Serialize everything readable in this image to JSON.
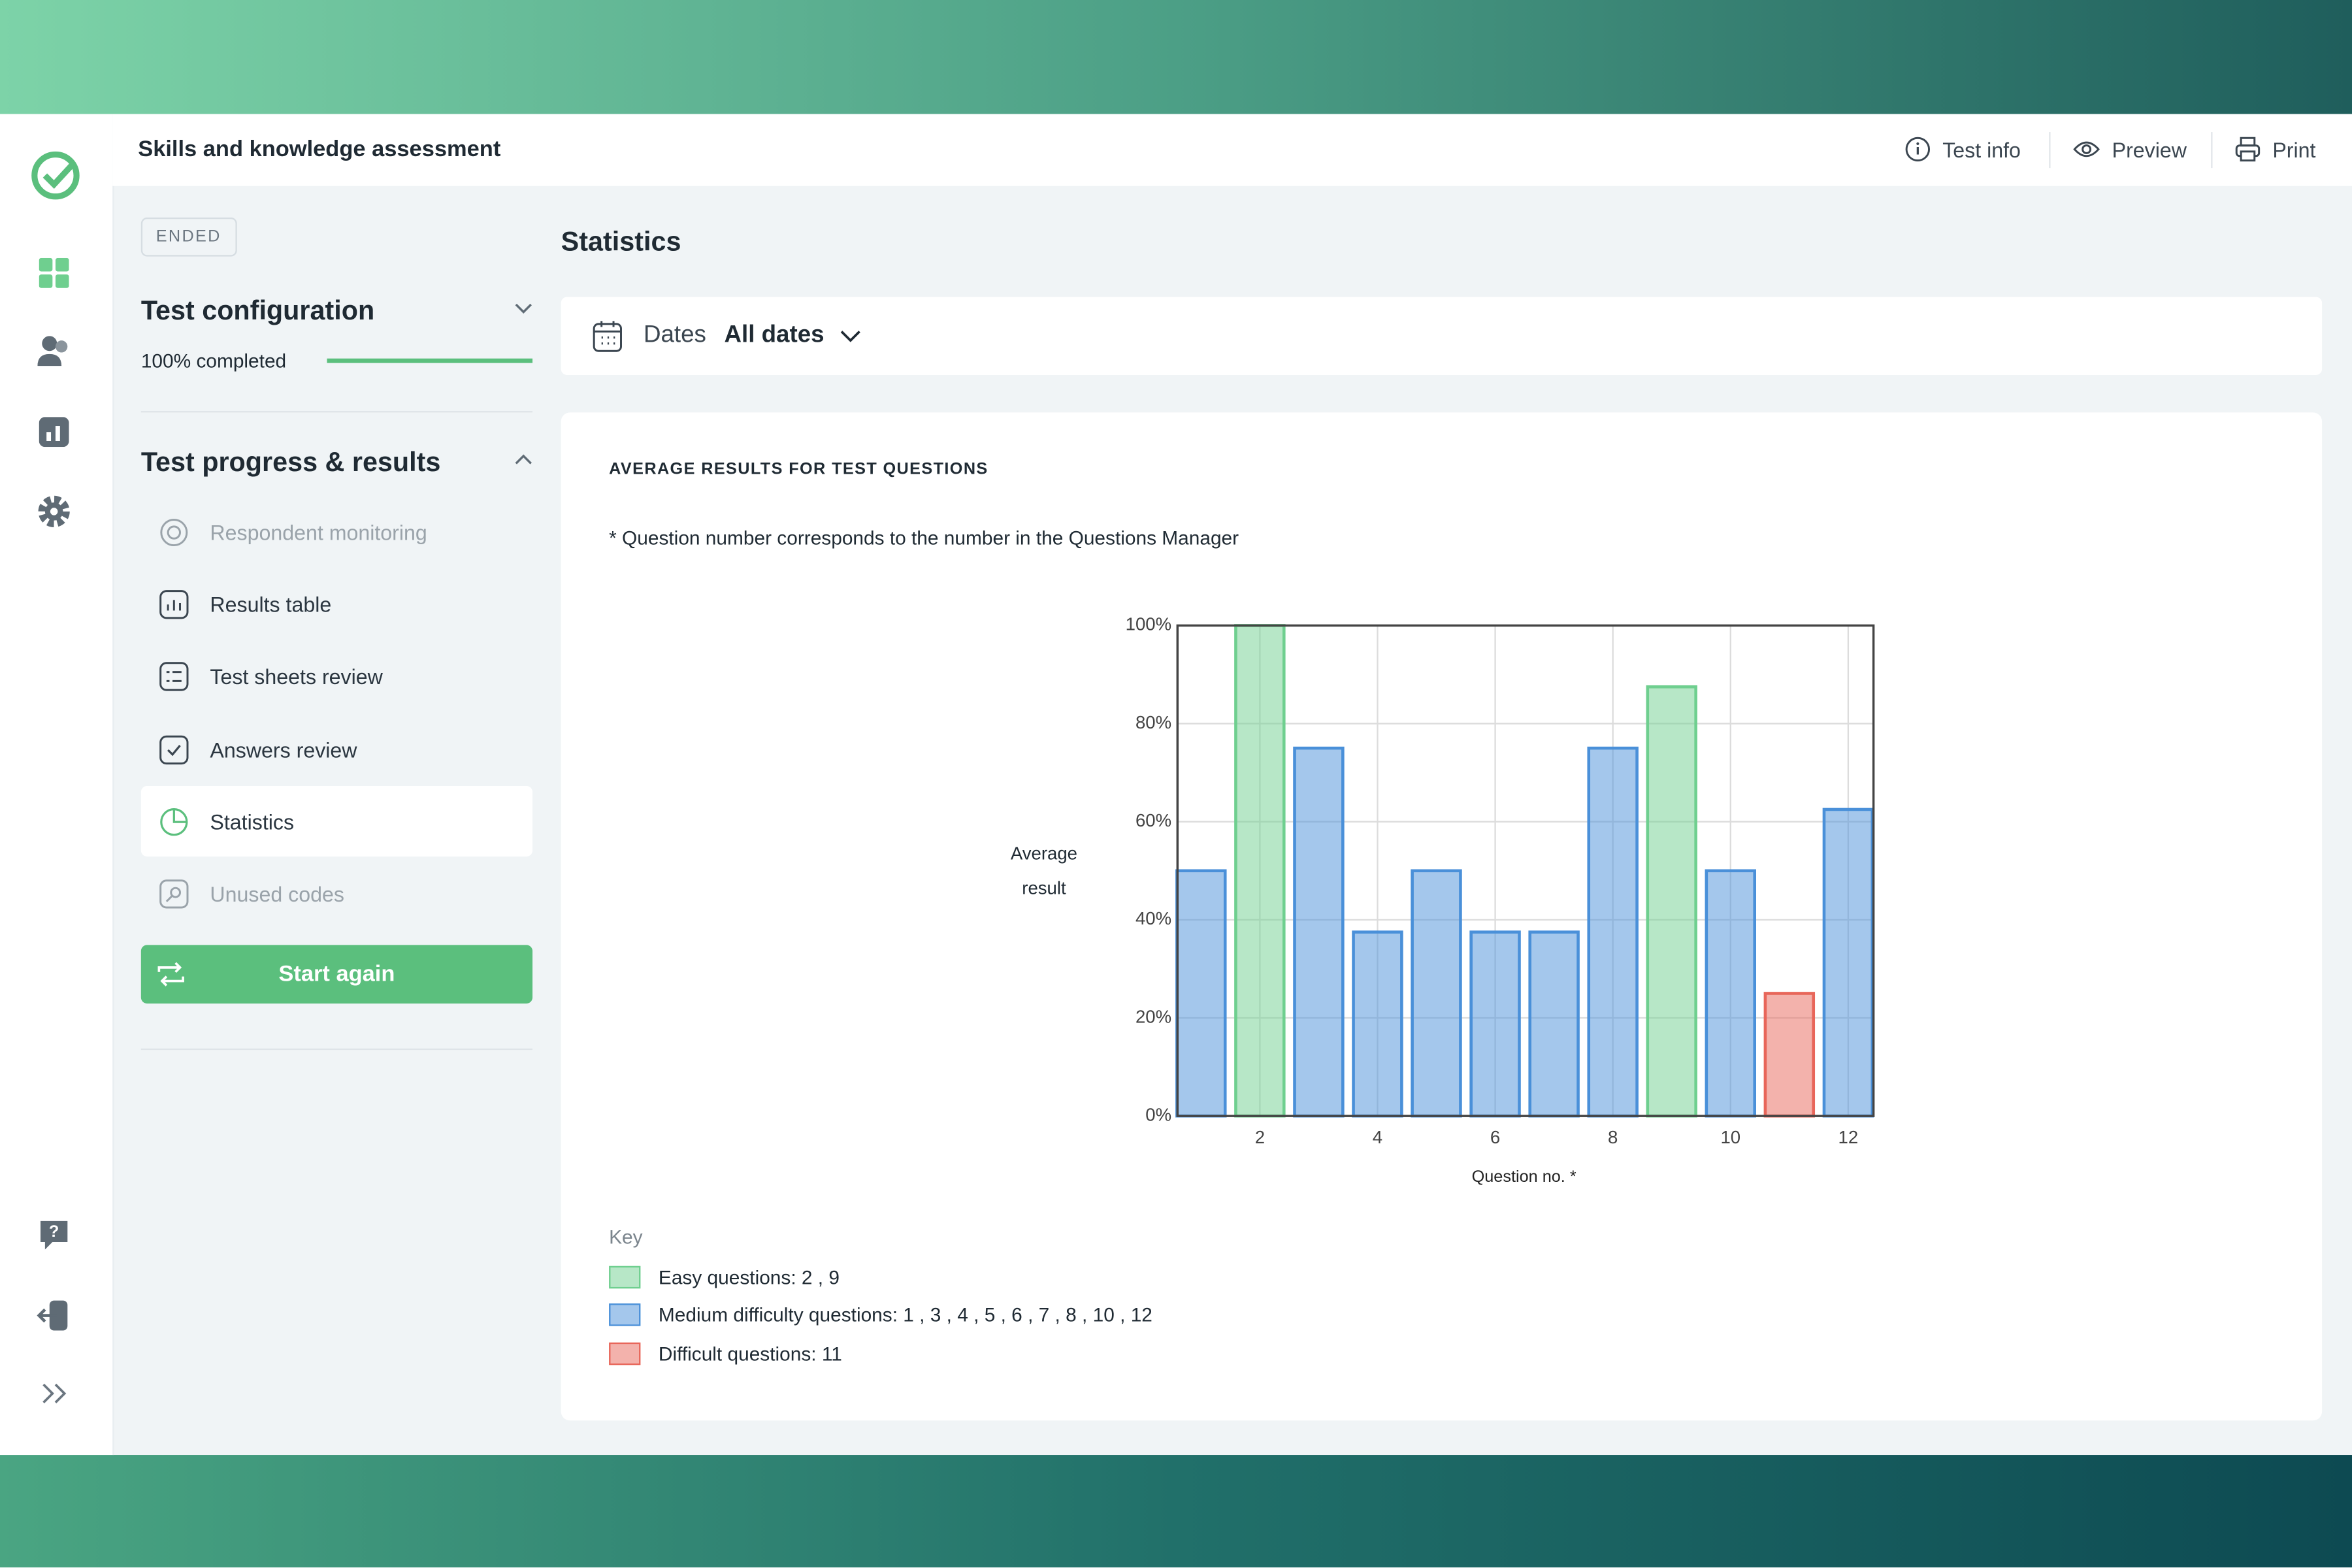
{
  "header": {
    "title": "Skills and knowledge assessment",
    "actions": [
      "Test info",
      "Preview",
      "Print"
    ]
  },
  "sidebar": {
    "status": "ENDED",
    "configuration": {
      "title": "Test configuration",
      "progress_label": "100% completed",
      "progress": 100
    },
    "progress_section": {
      "title": "Test progress & results",
      "items": [
        "Respondent monitoring",
        "Results table",
        "Test sheets review",
        "Answers review",
        "Statistics",
        "Unused codes"
      ],
      "button": "Start again"
    }
  },
  "main": {
    "title": "Statistics",
    "filter_label": "Dates",
    "filter_value": "All dates",
    "card_title": "AVERAGE RESULTS FOR TEST QUESTIONS",
    "note": "* Question number corresponds to the number in the Questions Manager"
  },
  "chart_data": {
    "type": "bar",
    "x_label": "Question no. *",
    "y_label": "Average result",
    "x": [
      1,
      2,
      3,
      4,
      5,
      6,
      7,
      8,
      9,
      10,
      11,
      12
    ],
    "values": [
      50,
      100,
      75,
      37.5,
      50,
      37.5,
      37.5,
      75,
      87.5,
      50,
      25,
      62.5
    ],
    "colors": [
      "#4a90d9",
      "#6fcf8f",
      "#4a90d9",
      "#4a90d9",
      "#4a90d9",
      "#4a90d9",
      "#4a90d9",
      "#4a90d9",
      "#6fcf8f",
      "#4a90d9",
      "#e8665a",
      "#4a90d9"
    ],
    "xlim": [
      0.6,
      12.43
    ],
    "xticks": [
      2,
      4,
      6,
      8,
      10,
      12
    ],
    "ylim": [
      0,
      100
    ],
    "yticks": [
      {
        "value": 0,
        "label": "0%"
      },
      {
        "value": 20,
        "label": "20%"
      },
      {
        "value": 40,
        "label": "40%"
      },
      {
        "value": 60,
        "label": "60%"
      },
      {
        "value": 80,
        "label": "80%"
      },
      {
        "value": 100,
        "label": "100%"
      }
    ],
    "grid": true,
    "legend": {
      "title": "Key",
      "entries": [
        {
          "label": "Easy questions: 2 , 9",
          "color": "#6fcf8f"
        },
        {
          "label": "Medium difficulty questions: 1 , 3 , 4 , 5 , 6 , 7 , 8 , 10 , 12",
          "color": "#4a90d9"
        },
        {
          "label": "Difficult questions: 11",
          "color": "#e8665a"
        }
      ]
    }
  }
}
